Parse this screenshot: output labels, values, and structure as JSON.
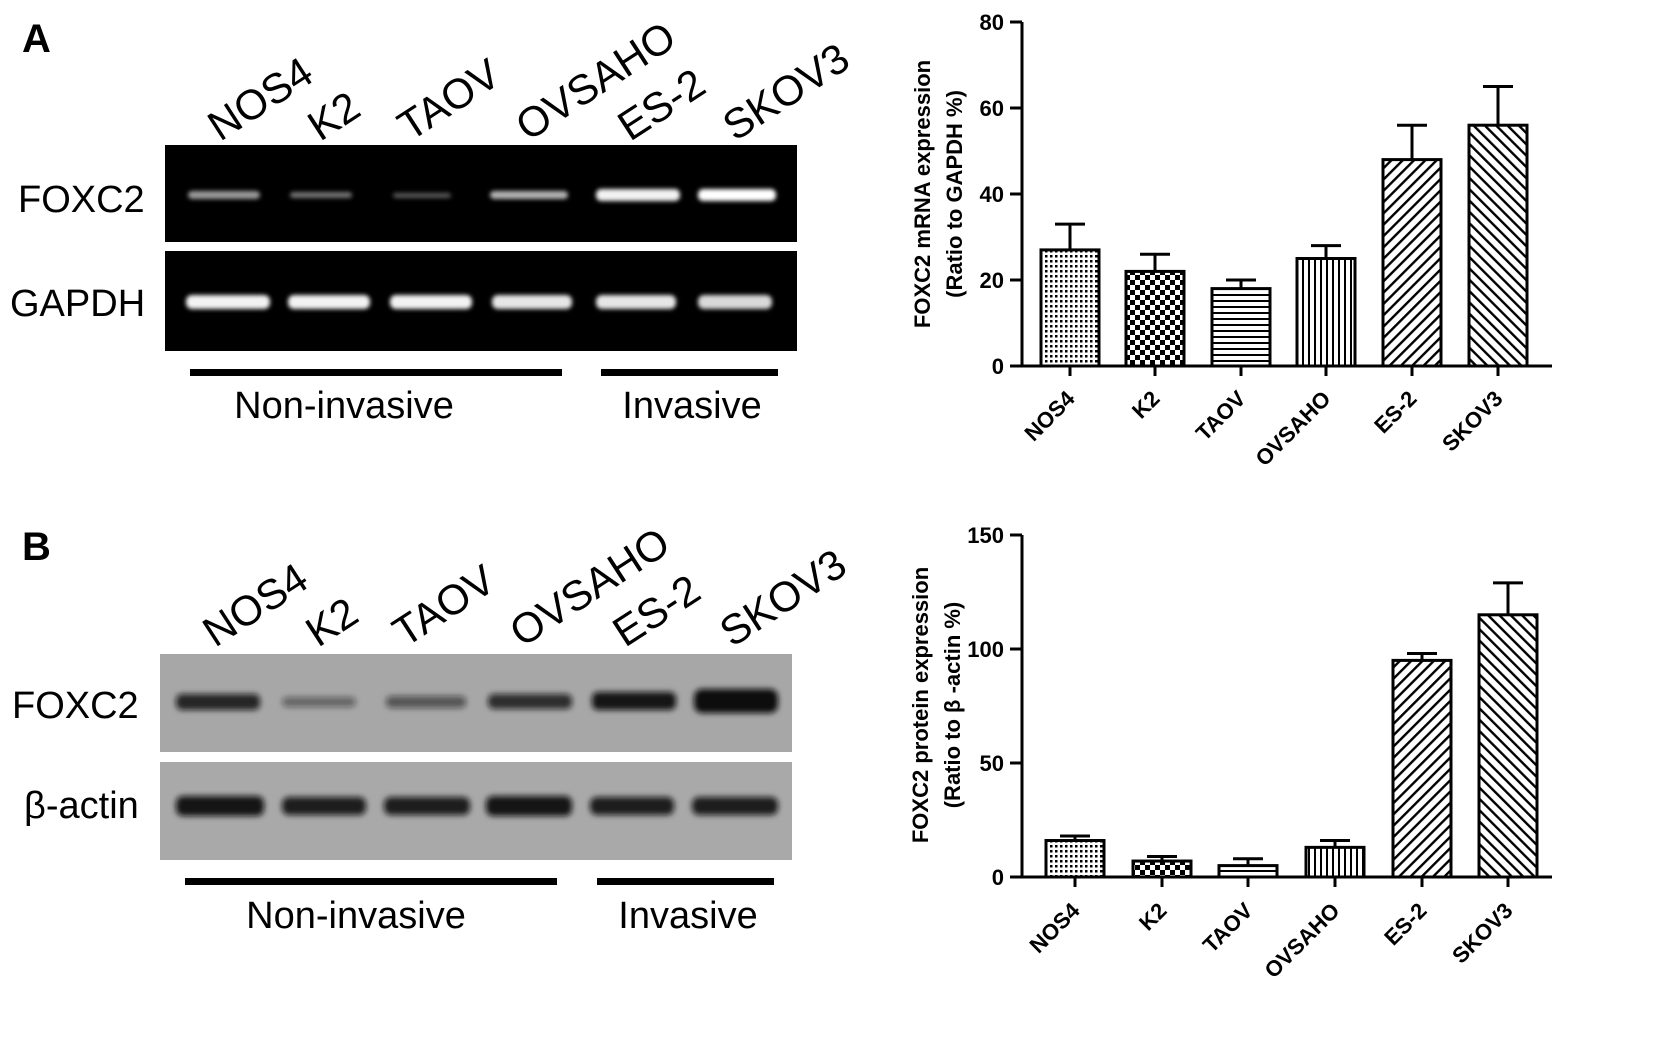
{
  "panels": [
    {
      "label": "A",
      "blot": {
        "lanes": [
          "NOS4",
          "K2",
          "TAOV",
          "OVSAHO",
          "ES-2",
          "SKOV3"
        ],
        "row_labels": [
          "FOXC2",
          "GAPDH"
        ],
        "groups": [
          "Non-invasive",
          "Invasive"
        ]
      }
    },
    {
      "label": "B",
      "blot": {
        "lanes": [
          "NOS4",
          "K2",
          "TAOV",
          "OVSAHO",
          "ES-2",
          "SKOV3"
        ],
        "row_labels": [
          "FOXC2",
          "β-actin"
        ],
        "groups": [
          "Non-invasive",
          "Invasive"
        ]
      }
    }
  ],
  "chart_data": [
    {
      "type": "bar",
      "categories": [
        "NOS4",
        "K2",
        "TAOV",
        "OVSAHO",
        "ES-2",
        "SKOV3"
      ],
      "values": [
        27,
        22,
        18,
        25,
        48,
        56
      ],
      "errors": [
        6,
        4,
        2,
        3,
        8,
        9
      ],
      "ylabel": [
        "FOXC2 mRNA expression",
        "(Ratio to GAPDH %)"
      ],
      "ylim": [
        0,
        80
      ],
      "yticks": [
        0,
        20,
        40,
        60,
        80
      ],
      "grid": false,
      "patterns": [
        "dots",
        "checker",
        "hlines",
        "vlines",
        "diag-up",
        "diag-down"
      ]
    },
    {
      "type": "bar",
      "categories": [
        "NOS4",
        "K2",
        "TAOV",
        "OVSAHO",
        "ES-2",
        "SKOV3"
      ],
      "values": [
        16,
        7,
        5,
        13,
        95,
        115
      ],
      "errors": [
        2,
        2,
        3,
        3,
        3,
        14
      ],
      "ylabel": [
        "FOXC2 protein expression",
        "(Ratio to β -actin %)"
      ],
      "ylim": [
        0,
        150
      ],
      "yticks": [
        0,
        50,
        100,
        150
      ],
      "grid": false,
      "patterns": [
        "dots",
        "checker",
        "hlines",
        "vlines",
        "diag-up",
        "diag-down"
      ]
    }
  ]
}
